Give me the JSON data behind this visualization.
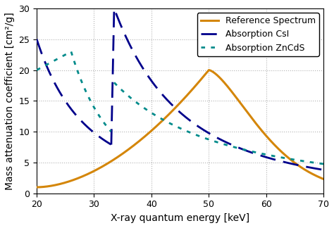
{
  "title": "",
  "xlabel": "X-ray quantum energy [keV]",
  "ylabel": "Mass attenuation coefficient [cm²/g]",
  "xlim": [
    20,
    70
  ],
  "ylim": [
    0,
    30
  ],
  "xticks": [
    20,
    30,
    40,
    50,
    60,
    70
  ],
  "yticks": [
    0,
    5,
    10,
    15,
    20,
    25,
    30
  ],
  "ref_color": "#D4860A",
  "csi_color": "#00008B",
  "zncds_color": "#008B8B",
  "legend_labels": [
    "Reference Spectrum",
    "Absorption CsI",
    "Absorption ZnCdS"
  ],
  "figsize": [
    4.74,
    3.24
  ],
  "dpi": 100
}
